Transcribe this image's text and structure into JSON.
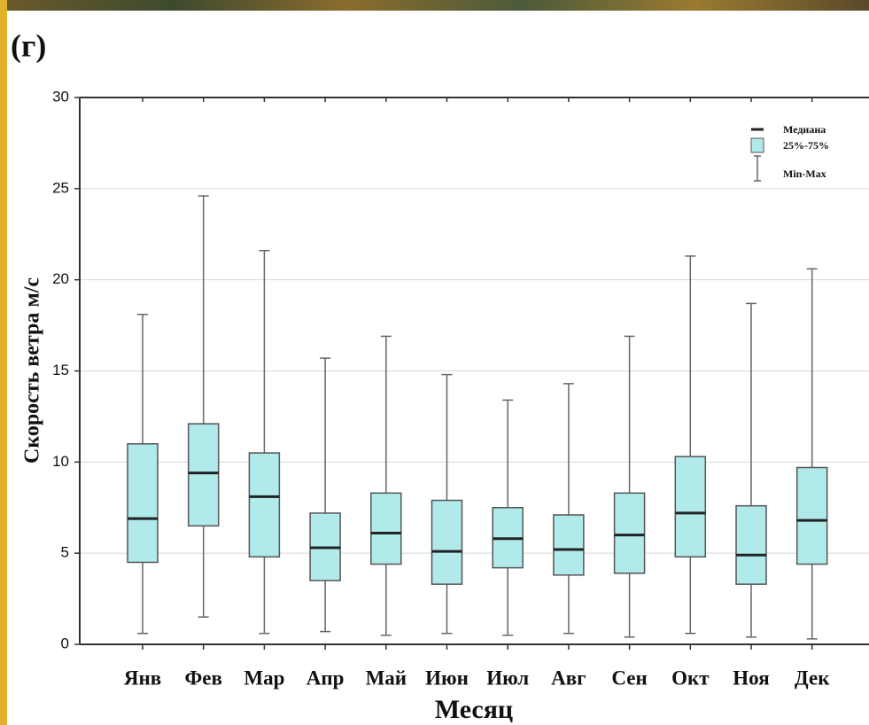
{
  "chart_data": {
    "type": "box",
    "panel_label": "(г)",
    "y_label": "Скорость ветра м/с",
    "x_label": "Месяц",
    "categories": [
      "Янв",
      "Фев",
      "Мар",
      "Апр",
      "Май",
      "Июн",
      "Июл",
      "Авг",
      "Сен",
      "Окт",
      "Ноя",
      "Дек"
    ],
    "min": [
      0.6,
      1.5,
      0.6,
      0.7,
      0.5,
      0.6,
      0.5,
      0.6,
      0.4,
      0.6,
      0.4,
      0.3
    ],
    "q1": [
      4.5,
      6.5,
      4.8,
      3.5,
      4.4,
      3.3,
      4.2,
      3.8,
      3.9,
      4.8,
      3.3,
      4.4
    ],
    "median": [
      6.9,
      9.4,
      8.1,
      5.3,
      6.1,
      5.1,
      5.8,
      5.2,
      6.0,
      7.2,
      4.9,
      6.8
    ],
    "q3": [
      11.0,
      12.1,
      10.5,
      7.2,
      8.3,
      7.9,
      7.5,
      7.1,
      8.3,
      10.3,
      7.6,
      9.7
    ],
    "max": [
      18.1,
      24.6,
      21.6,
      15.7,
      16.9,
      14.8,
      13.4,
      14.3,
      16.9,
      21.3,
      18.7,
      20.6
    ],
    "color": "#b0eaea",
    "ylim": [
      0,
      30
    ],
    "yticks": [
      0,
      5,
      10,
      15,
      20,
      25,
      30
    ],
    "grid": true,
    "legend": {
      "median": "Медиана",
      "box": "25%-75%",
      "whisker": "Min-Max"
    },
    "legend_position": "upper right"
  }
}
